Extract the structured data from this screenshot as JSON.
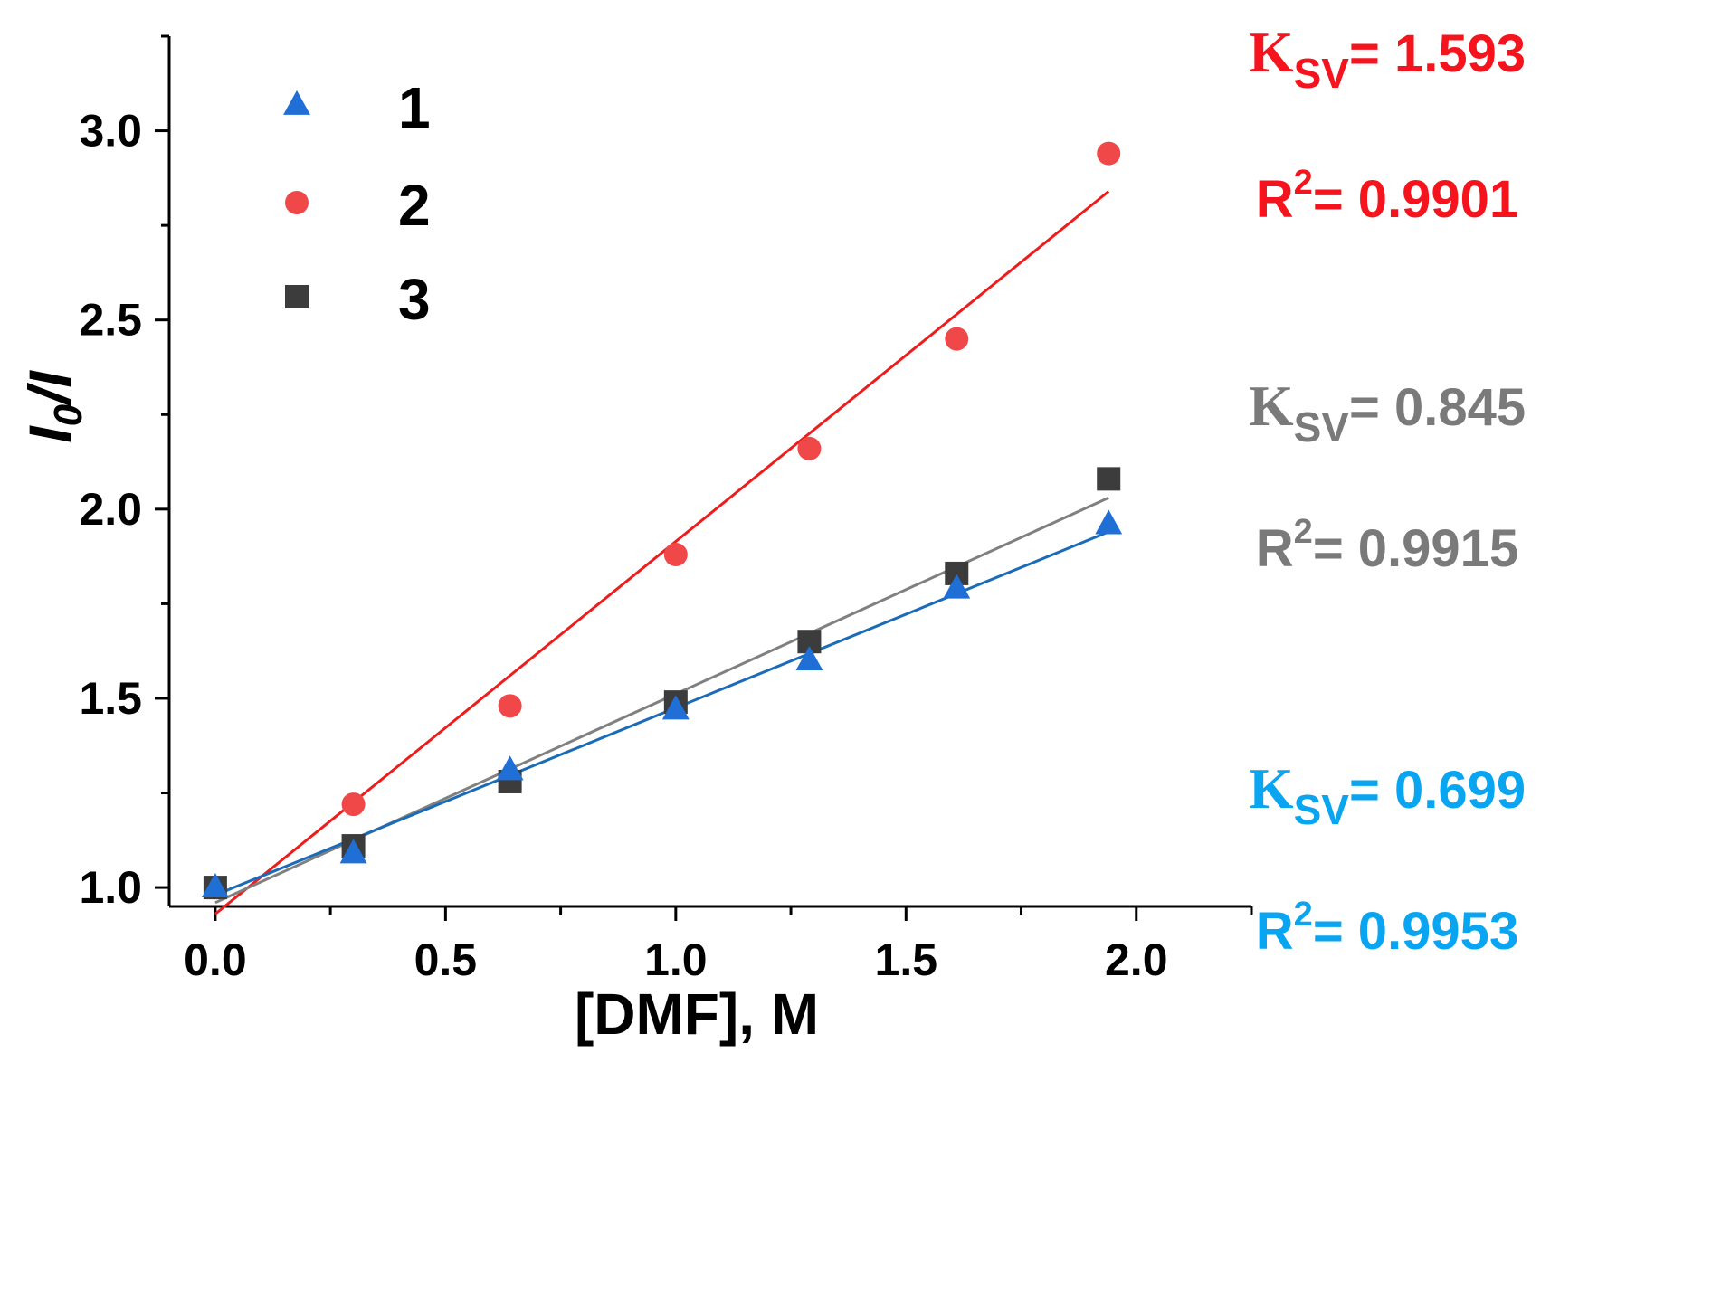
{
  "chart_data": {
    "type": "scatter",
    "title": "",
    "xlabel": "[DMF], M",
    "ylabel": {
      "italic_main": "I",
      "subscript": "0",
      "suffix": "/I"
    },
    "xlim": [
      -0.1,
      2.25
    ],
    "ylim": [
      0.95,
      3.25
    ],
    "xticks": [
      {
        "value": 0.0,
        "label": "0.0"
      },
      {
        "value": 0.5,
        "label": "0.5"
      },
      {
        "value": 1.0,
        "label": "1.0"
      },
      {
        "value": 1.5,
        "label": "1.5"
      },
      {
        "value": 2.0,
        "label": "2.0"
      }
    ],
    "xminor": [
      0.25,
      0.75,
      1.25,
      1.75,
      2.25
    ],
    "yticks": [
      {
        "value": 1.0,
        "label": "1.0"
      },
      {
        "value": 1.5,
        "label": "1.5"
      },
      {
        "value": 2.0,
        "label": "2.0"
      },
      {
        "value": 2.5,
        "label": "2.5"
      },
      {
        "value": 3.0,
        "label": "3.0"
      }
    ],
    "yminor": [
      1.25,
      1.75,
      2.25,
      2.75,
      3.25
    ],
    "legend_position": "top-left",
    "series": [
      {
        "name": "1",
        "marker": "triangle",
        "color": "#1f6fd6",
        "line_color": "#1a6bb8",
        "x": [
          0.0,
          0.3,
          0.64,
          1.0,
          1.29,
          1.61,
          1.94
        ],
        "y": [
          1.0,
          1.09,
          1.31,
          1.47,
          1.6,
          1.79,
          1.96
        ],
        "fit": {
          "x": [
            0.0,
            1.94
          ],
          "y": [
            0.98,
            1.94
          ]
        },
        "annotation": {
          "ksv_label": "K",
          "ksv_sub": "SV",
          "ksv_value": "= 0.699",
          "r2_label": "R",
          "r2_sup": "2",
          "r2_value": "= 0.9953",
          "color": "#0aa5f0"
        }
      },
      {
        "name": "2",
        "marker": "circle",
        "color": "#f04848",
        "line_color": "#ee1c1c",
        "x": [
          0.0,
          0.3,
          0.64,
          1.0,
          1.29,
          1.61,
          1.94
        ],
        "y": [
          1.0,
          1.22,
          1.48,
          1.88,
          2.16,
          2.45,
          2.94
        ],
        "fit": {
          "x": [
            0.0,
            1.94
          ],
          "y": [
            0.93,
            2.84
          ]
        },
        "annotation": {
          "ksv_label": "K",
          "ksv_sub": "SV",
          "ksv_value": "= 1.593",
          "r2_label": "R",
          "r2_sup": "2",
          "r2_value": "= 0.9901",
          "color": "#f5141e"
        }
      },
      {
        "name": "3",
        "marker": "square",
        "color": "#3c3c3c",
        "line_color": "#808080",
        "x": [
          0.0,
          0.3,
          0.64,
          1.0,
          1.29,
          1.61,
          1.94
        ],
        "y": [
          1.0,
          1.11,
          1.28,
          1.49,
          1.65,
          1.83,
          2.08
        ],
        "fit": {
          "x": [
            0.0,
            1.94
          ],
          "y": [
            0.96,
            2.03
          ]
        },
        "annotation": {
          "ksv_label": "K",
          "ksv_sub": "SV",
          "ksv_value": "= 0.845",
          "r2_label": "R",
          "r2_sup": "2",
          "r2_value": "= 0.9915",
          "color": "#7a7a7a"
        }
      }
    ]
  }
}
